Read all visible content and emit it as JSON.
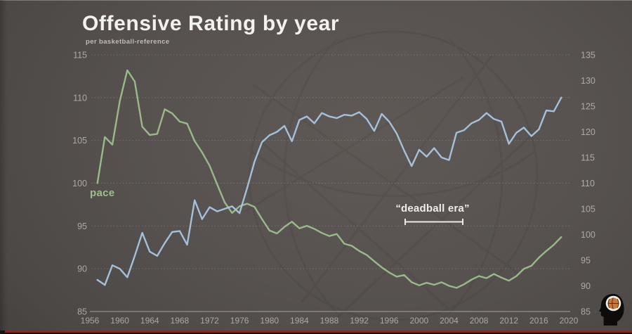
{
  "header": {
    "title": "Offensive Rating by year",
    "subtitle": "per basketball-reference"
  },
  "colors": {
    "background": "#56514e",
    "ortg_line": "#a9c6e3",
    "pace_line": "#9dbf8e",
    "grid": "rgba(245,240,234,0.20)",
    "axis_baseline": "rgba(232,227,219,0.38)",
    "axis_text": "rgba(226,221,213,0.62)",
    "annotation_text": "#efece7",
    "accent_red": "#7d2d26",
    "logo_ball": "#c9793c",
    "logo_head": "#0e0c0b",
    "logo_brain": "#f2efe9"
  },
  "chart_data": {
    "type": "line",
    "title": "Offensive Rating by year",
    "source_note": "per basketball-reference",
    "grid": "horizontal-dotted",
    "x_years": [
      1957,
      1958,
      1959,
      1960,
      1961,
      1962,
      1963,
      1964,
      1965,
      1966,
      1967,
      1968,
      1969,
      1970,
      1971,
      1972,
      1973,
      1974,
      1975,
      1976,
      1977,
      1978,
      1979,
      1980,
      1981,
      1982,
      1983,
      1984,
      1985,
      1986,
      1987,
      1988,
      1989,
      1990,
      1991,
      1992,
      1993,
      1994,
      1995,
      1996,
      1997,
      1998,
      1999,
      2000,
      2001,
      2002,
      2003,
      2004,
      2005,
      2006,
      2007,
      2008,
      2009,
      2010,
      2011,
      2012,
      2013,
      2014,
      2015,
      2016,
      2017,
      2018,
      2019
    ],
    "series": [
      {
        "name": "Offensive Rating",
        "axis": "left",
        "color": "#a9c6e3",
        "values": [
          88.7,
          88.1,
          90.4,
          90.0,
          89.0,
          91.5,
          94.2,
          92.0,
          91.5,
          93.0,
          94.3,
          94.4,
          92.8,
          98.0,
          95.8,
          97.2,
          96.7,
          97.0,
          97.3,
          96.5,
          99.4,
          102.5,
          104.8,
          105.6,
          106.0,
          106.7,
          104.9,
          107.4,
          107.8,
          107.0,
          108.2,
          107.8,
          107.6,
          108.0,
          107.9,
          108.3,
          107.5,
          106.1,
          108.1,
          107.2,
          105.8,
          103.8,
          102.0,
          103.9,
          103.1,
          104.1,
          103.0,
          102.7,
          105.9,
          106.2,
          107.0,
          107.4,
          108.2,
          107.5,
          107.2,
          104.6,
          105.9,
          106.5,
          105.5,
          106.3,
          108.5,
          108.4,
          110.0
        ]
      },
      {
        "name": "pace",
        "axis": "right",
        "color": "#9dbf8e",
        "values": [
          110.0,
          119.0,
          117.5,
          126.0,
          132.0,
          129.8,
          121.0,
          119.4,
          119.6,
          124.4,
          123.6,
          122.0,
          121.6,
          118.2,
          116.0,
          113.4,
          109.8,
          106.3,
          104.2,
          105.5,
          106.0,
          105.4,
          103.0,
          100.8,
          100.2,
          101.5,
          102.5,
          101.2,
          101.7,
          101.1,
          100.3,
          99.7,
          100.1,
          98.2,
          97.8,
          96.8,
          96.0,
          94.8,
          93.6,
          92.6,
          91.8,
          92.1,
          90.7,
          90.1,
          90.6,
          90.2,
          90.7,
          90.0,
          89.6,
          90.3,
          91.2,
          91.9,
          91.5,
          92.3,
          91.6,
          91.0,
          91.9,
          93.3,
          93.9,
          95.5,
          96.8,
          98.0,
          99.5
        ]
      }
    ],
    "axes": {
      "left": {
        "min": 85,
        "max": 115,
        "ticks": [
          115,
          110,
          105,
          100,
          95,
          90,
          85
        ]
      },
      "right": {
        "min": 85,
        "max": 135,
        "ticks": [
          135,
          130,
          125,
          120,
          115,
          110,
          105,
          100,
          95,
          90,
          85
        ]
      },
      "x": {
        "min": 1956,
        "max": 2020,
        "ticks": [
          1956,
          1960,
          1964,
          1968,
          1972,
          1976,
          1980,
          1984,
          1988,
          1992,
          1996,
          2000,
          2004,
          2008,
          2012,
          2016,
          2020
        ]
      }
    },
    "annotations": {
      "pace_label": "pace",
      "deadball": {
        "text": "“deadball era”",
        "year_span": [
          1998,
          2005.5
        ]
      }
    }
  }
}
